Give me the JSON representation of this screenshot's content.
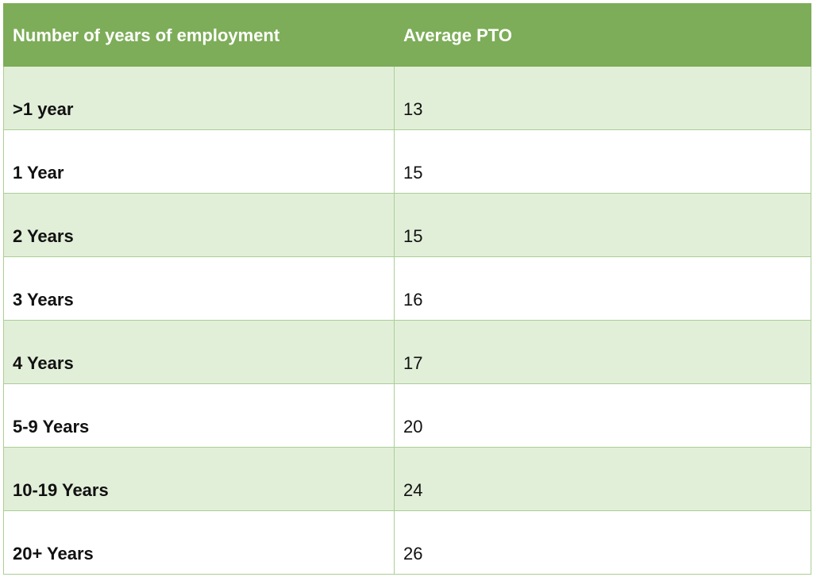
{
  "table": {
    "headers": [
      "Number of years of employment",
      "Average PTO"
    ],
    "rows": [
      {
        "years": ">1 year",
        "pto": "13"
      },
      {
        "years": "1 Year",
        "pto": "15"
      },
      {
        "years": "2 Years",
        "pto": "15"
      },
      {
        "years": "3 Years",
        "pto": "16"
      },
      {
        "years": "4 Years",
        "pto": "17"
      },
      {
        "years": "5-9 Years",
        "pto": "20"
      },
      {
        "years": "10-19 Years",
        "pto": "24"
      },
      {
        "years": "20+ Years",
        "pto": "26"
      }
    ]
  },
  "colors": {
    "header_bg": "#7dad58",
    "alt_row_bg": "#e2efd8",
    "border": "#a9cf95"
  }
}
